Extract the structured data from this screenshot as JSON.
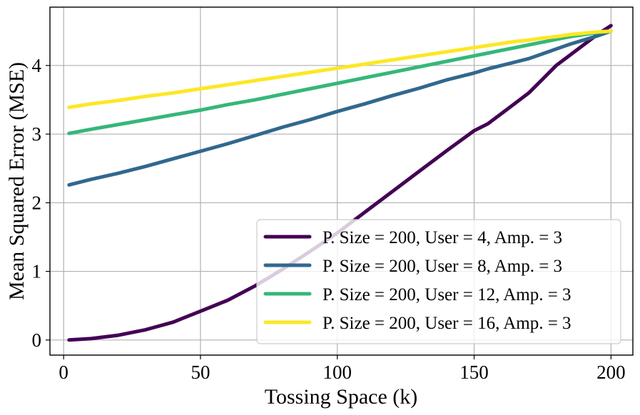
{
  "chart_data": {
    "type": "line",
    "title": "",
    "xlabel": "Tossing Space (k)",
    "ylabel": "Mean Squared Error (MSE)",
    "xlim": [
      -5,
      208
    ],
    "ylim": [
      -0.22,
      4.85
    ],
    "xticks": [
      0,
      50,
      100,
      150,
      200
    ],
    "xtick_labels": [
      "0",
      "50",
      "100",
      "150",
      "200"
    ],
    "yticks": [
      0,
      1,
      2,
      3,
      4
    ],
    "ytick_labels": [
      "0",
      "1",
      "2",
      "3",
      "4"
    ],
    "grid": true,
    "legend_position": "lower-right",
    "x": [
      2,
      10,
      20,
      30,
      40,
      50,
      60,
      70,
      80,
      90,
      100,
      110,
      120,
      130,
      140,
      150,
      155,
      160,
      165,
      170,
      175,
      180,
      185,
      190,
      195,
      200
    ],
    "series": [
      {
        "name": "P. Size = 200, User = 4, Amp. = 3",
        "color": "#440154",
        "values": [
          0.0,
          0.02,
          0.07,
          0.15,
          0.26,
          0.42,
          0.58,
          0.79,
          1.03,
          1.29,
          1.56,
          1.86,
          2.16,
          2.46,
          2.76,
          3.05,
          3.15,
          3.3,
          3.45,
          3.6,
          3.8,
          4.0,
          4.15,
          4.3,
          4.45,
          4.58
        ]
      },
      {
        "name": "P. Size = 200, User = 8, Amp. = 3",
        "color": "#31688e",
        "values": [
          2.26,
          2.34,
          2.43,
          2.53,
          2.64,
          2.75,
          2.86,
          2.98,
          3.1,
          3.21,
          3.33,
          3.44,
          3.56,
          3.67,
          3.79,
          3.89,
          3.95,
          4.0,
          4.05,
          4.1,
          4.17,
          4.24,
          4.31,
          4.37,
          4.43,
          4.5
        ]
      },
      {
        "name": "P. Size = 200, User = 12, Amp. = 3",
        "color": "#35b779",
        "values": [
          3.01,
          3.07,
          3.14,
          3.21,
          3.28,
          3.35,
          3.43,
          3.5,
          3.58,
          3.66,
          3.74,
          3.82,
          3.9,
          3.98,
          4.06,
          4.14,
          4.18,
          4.22,
          4.26,
          4.3,
          4.34,
          4.38,
          4.42,
          4.45,
          4.48,
          4.5
        ]
      },
      {
        "name": "P. Size = 200, User = 16, Amp. = 3",
        "color": "#fde725",
        "values": [
          3.39,
          3.44,
          3.49,
          3.55,
          3.6,
          3.66,
          3.72,
          3.78,
          3.84,
          3.9,
          3.96,
          4.02,
          4.08,
          4.14,
          4.2,
          4.26,
          4.29,
          4.32,
          4.35,
          4.37,
          4.4,
          4.42,
          4.45,
          4.47,
          4.49,
          4.5
        ]
      }
    ]
  }
}
